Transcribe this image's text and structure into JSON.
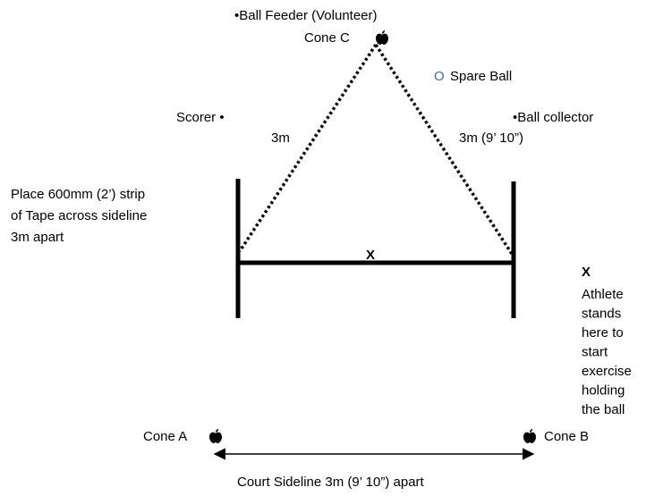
{
  "labels": {
    "ball_feeder": "•Ball Feeder (Volunteer)",
    "cone_c": "Cone C",
    "spare_ball_marker": "O",
    "spare_ball": "Spare Ball",
    "scorer": "Scorer •",
    "left_distance": "3m",
    "right_distance": "3m (9’ 10”)",
    "ball_collector": "•Ball collector",
    "tape_note": [
      "Place 600mm (2’) strip",
      "of Tape across sideline",
      "3m apart"
    ],
    "start_mark": "X",
    "legend_mark": "X",
    "athlete_note": [
      "Athlete",
      "stands",
      "here to",
      "start",
      "exercise",
      "holding",
      "the ball"
    ],
    "cone_a": "Cone A",
    "cone_b": "Cone B",
    "sideline": "Court Sideline 3m (9’ 10”) apart"
  }
}
